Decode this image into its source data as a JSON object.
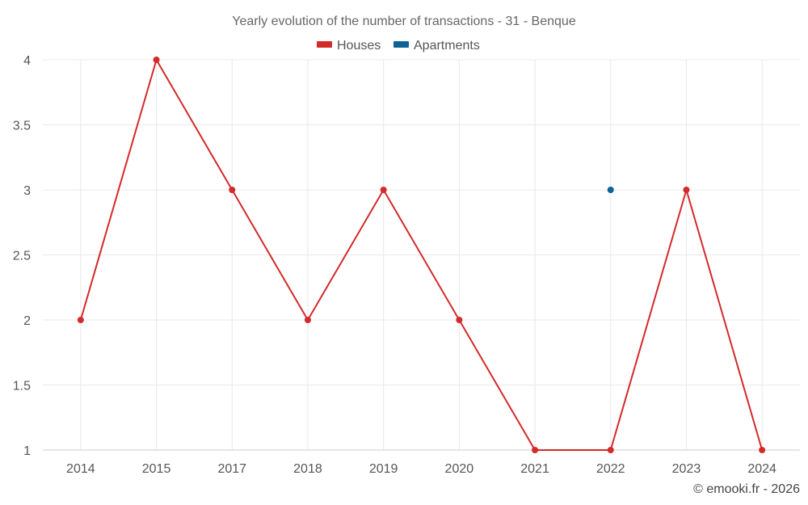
{
  "chart_data": {
    "type": "line",
    "title": "Yearly evolution of the number of transactions - 31 - Benque",
    "categories": [
      "2014",
      "2015",
      "2017",
      "2018",
      "2019",
      "2020",
      "2021",
      "2022",
      "2023",
      "2024"
    ],
    "series": [
      {
        "name": "Houses",
        "color": "#d32a2a",
        "values": [
          2,
          4,
          3,
          2,
          3,
          2,
          1,
          1,
          3,
          1
        ]
      },
      {
        "name": "Apartments",
        "color": "#0f6296",
        "values": [
          null,
          null,
          null,
          null,
          null,
          null,
          null,
          3,
          null,
          null
        ]
      }
    ],
    "ylim": [
      1,
      4
    ],
    "yticks": [
      1,
      1.5,
      2,
      2.5,
      3,
      3.5,
      4
    ],
    "ytick_labels": [
      "1",
      "1.5",
      "2",
      "2.5",
      "3",
      "3.5",
      "4"
    ],
    "grid": true,
    "legend": "top-center",
    "xlabel": "",
    "ylabel": ""
  },
  "credit": "© emooki.fr - 2026"
}
